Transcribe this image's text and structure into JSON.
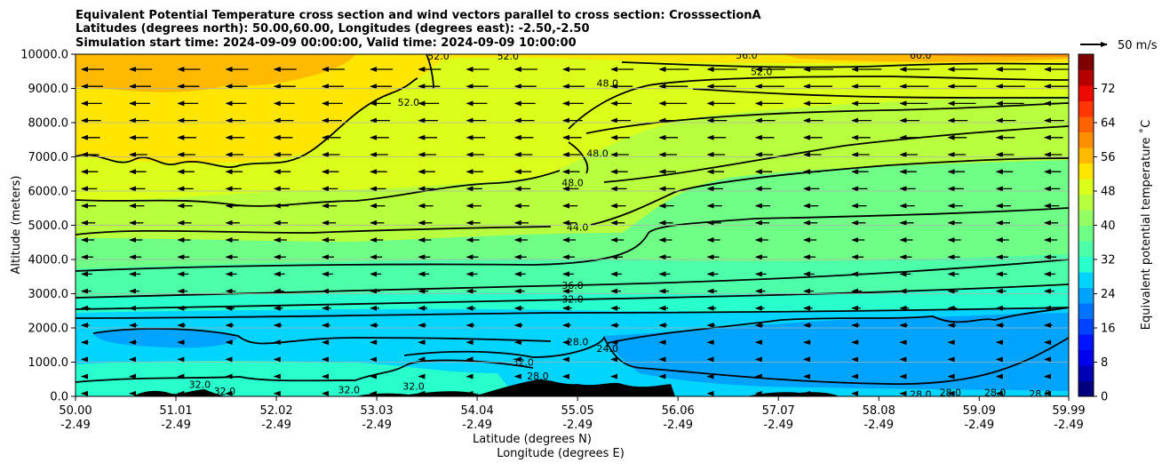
{
  "chart_data": {
    "type": "filled-contour cross section with wind vectors",
    "title_lines": [
      "Equivalent Potential Temperature cross section and wind vectors parallel to cross section: CrosssectionA",
      "Latitudes (degrees north): 50.00,60.00, Longitudes (degrees east): -2.50,-2.50",
      "Simulation start time: 2024-09-09 00:00:00, Valid time: 2024-09-09 10:00:00"
    ],
    "ylabel": "Altitude (meters)",
    "xlabel_lines": [
      "Latitude (degrees N)",
      "Longitude (degrees E)"
    ],
    "ylim": [
      0,
      10000
    ],
    "y_ticks": [
      "0.0",
      "1000.0",
      "2000.0",
      "3000.0",
      "4000.0",
      "5000.0",
      "6000.0",
      "7000.0",
      "8000.0",
      "9000.0",
      "10000.0"
    ],
    "x_tick_lat": [
      "50.00",
      "51.01",
      "52.02",
      "53.03",
      "54.04",
      "55.05",
      "56.06",
      "57.07",
      "58.08",
      "59.09",
      "59.99"
    ],
    "x_tick_lon": [
      "-2.49",
      "-2.49",
      "-2.49",
      "-2.49",
      "-2.49",
      "-2.49",
      "-2.49",
      "-2.49",
      "-2.49",
      "-2.49",
      "-2.49"
    ],
    "colorbar": {
      "label": "Equivalent potential temperature ˚C",
      "range": [
        0,
        80
      ],
      "ticks": [
        "0",
        "8",
        "16",
        "24",
        "32",
        "40",
        "48",
        "56",
        "64",
        "72"
      ],
      "colors": [
        "#00007f",
        "#0000b6",
        "#0000ed",
        "#0014ff",
        "#0044ff",
        "#0074ff",
        "#00a4ff",
        "#00d4ff",
        "#29ffcd",
        "#4dffa9",
        "#70ff86",
        "#94ff62",
        "#b7ff3f",
        "#dbff1b",
        "#ffe500",
        "#ffb900",
        "#ff8e00",
        "#ff6200",
        "#ff3600",
        "#ed0a00",
        "#b60000",
        "#7f0000"
      ]
    },
    "wind_key": "50 m/s",
    "contour_labels": [
      {
        "text": "52.0",
        "lat": 53.65,
        "alt": 9950
      },
      {
        "text": "52.0",
        "lat": 54.35,
        "alt": 9950
      },
      {
        "text": "52.0",
        "lat": 53.35,
        "alt": 8600
      },
      {
        "text": "56.0",
        "lat": 56.75,
        "alt": 9980
      },
      {
        "text": "52.0",
        "lat": 56.9,
        "alt": 9500
      },
      {
        "text": "60.0",
        "lat": 58.5,
        "alt": 9980
      },
      {
        "text": "48.0",
        "lat": 55.35,
        "alt": 9150
      },
      {
        "text": "48.0",
        "lat": 55.25,
        "alt": 7100
      },
      {
        "text": "48.0",
        "lat": 55.0,
        "alt": 6250
      },
      {
        "text": "44.0",
        "lat": 55.05,
        "alt": 4950
      },
      {
        "text": "36.0",
        "lat": 55.0,
        "alt": 3250
      },
      {
        "text": "32.0",
        "lat": 55.0,
        "alt": 2850
      },
      {
        "text": "28.0",
        "lat": 55.05,
        "alt": 1600
      },
      {
        "text": "24.0",
        "lat": 55.35,
        "alt": 1400
      },
      {
        "text": "32.0",
        "lat": 54.5,
        "alt": 1000
      },
      {
        "text": "28.0",
        "lat": 54.65,
        "alt": 600
      },
      {
        "text": "32.0",
        "lat": 51.25,
        "alt": 350
      },
      {
        "text": "32.0",
        "lat": 51.5,
        "alt": 150
      },
      {
        "text": "32.0",
        "lat": 52.75,
        "alt": 200
      },
      {
        "text": "32.0",
        "lat": 53.4,
        "alt": 300
      },
      {
        "text": "28.0",
        "lat": 55.6,
        "alt": 150
      },
      {
        "text": "28.0",
        "lat": 58.5,
        "alt": 60
      },
      {
        "text": "28.0",
        "lat": 58.8,
        "alt": 120
      },
      {
        "text": "28.0",
        "lat": 59.25,
        "alt": 120
      },
      {
        "text": "28.0",
        "lat": 59.7,
        "alt": 80
      }
    ]
  }
}
